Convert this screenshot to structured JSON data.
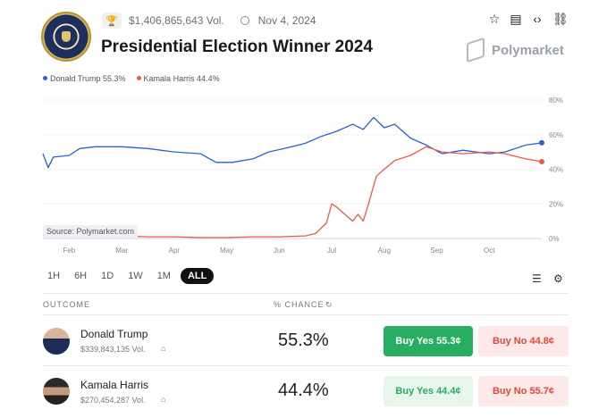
{
  "header": {
    "volume": "$1,406,865,643 Vol.",
    "date": "Nov 4, 2024",
    "title": "Presidential Election Winner 2024",
    "brand": "Polymarket"
  },
  "legend": [
    {
      "label": "Donald Trump 55.3%",
      "color": "#2d5fd3"
    },
    {
      "label": "Kamala Harris 44.4%",
      "color": "#e85b4a"
    }
  ],
  "source_label": "Source: Polymarket.com",
  "time_ranges": [
    "1H",
    "6H",
    "1D",
    "1W",
    "1M",
    "ALL"
  ],
  "active_range": "ALL",
  "table": {
    "outcome_header": "OUTCOME",
    "chance_header": "% CHANCE",
    "rows": [
      {
        "name": "Donald Trump",
        "volume": "$339,843,135 Vol.",
        "chance": "55.3%",
        "buy_yes": "Buy Yes 55.3¢",
        "buy_no": "Buy No 44.8¢"
      },
      {
        "name": "Kamala Harris",
        "volume": "$270,454,287 Vol.",
        "chance": "44.4%",
        "buy_yes": "Buy Yes 44.4¢",
        "buy_no": "Buy No 55.7¢"
      }
    ]
  },
  "chart_data": {
    "type": "line",
    "x_ticks": [
      "Feb",
      "Mar",
      "Apr",
      "May",
      "Jun",
      "Jul",
      "Aug",
      "Sep",
      "Oct"
    ],
    "y_ticks": [
      "0%",
      "20%",
      "40%",
      "60%",
      "80%"
    ],
    "ylim": [
      0,
      80
    ],
    "xlim": [
      0,
      9.5
    ],
    "grid": true,
    "series": [
      {
        "name": "Donald Trump",
        "color": "#2d5fd3",
        "points": [
          [
            0,
            49
          ],
          [
            0.1,
            41
          ],
          [
            0.2,
            47
          ],
          [
            0.5,
            48
          ],
          [
            0.7,
            52
          ],
          [
            1.0,
            53
          ],
          [
            1.5,
            53
          ],
          [
            2.0,
            52
          ],
          [
            2.5,
            50
          ],
          [
            3.0,
            49
          ],
          [
            3.3,
            44
          ],
          [
            3.6,
            44
          ],
          [
            4.0,
            46
          ],
          [
            4.3,
            50
          ],
          [
            4.6,
            52
          ],
          [
            5.0,
            55
          ],
          [
            5.3,
            59
          ],
          [
            5.6,
            62
          ],
          [
            5.9,
            66
          ],
          [
            6.1,
            63
          ],
          [
            6.3,
            70
          ],
          [
            6.5,
            64
          ],
          [
            6.7,
            66
          ],
          [
            7.0,
            58
          ],
          [
            7.3,
            54
          ],
          [
            7.6,
            49
          ],
          [
            8.0,
            51
          ],
          [
            8.5,
            49
          ],
          [
            8.8,
            50
          ],
          [
            9.2,
            54
          ],
          [
            9.5,
            55.3
          ]
        ]
      },
      {
        "name": "Kamala Harris",
        "color": "#e85b4a",
        "points": [
          [
            0,
            2
          ],
          [
            0.5,
            2
          ],
          [
            1.0,
            1
          ],
          [
            1.5,
            1.5
          ],
          [
            2.0,
            1
          ],
          [
            2.5,
            1
          ],
          [
            3.0,
            0.5
          ],
          [
            3.5,
            0.5
          ],
          [
            4.0,
            1
          ],
          [
            4.5,
            1
          ],
          [
            5.0,
            1.5
          ],
          [
            5.2,
            3
          ],
          [
            5.4,
            9
          ],
          [
            5.5,
            20
          ],
          [
            5.6,
            18
          ],
          [
            5.75,
            14
          ],
          [
            5.9,
            10
          ],
          [
            6.0,
            14
          ],
          [
            6.1,
            10
          ],
          [
            6.2,
            20
          ],
          [
            6.35,
            36
          ],
          [
            6.5,
            40
          ],
          [
            6.7,
            45
          ],
          [
            7.0,
            48
          ],
          [
            7.3,
            53
          ],
          [
            7.6,
            50
          ],
          [
            8.0,
            49
          ],
          [
            8.5,
            50
          ],
          [
            8.8,
            49
          ],
          [
            9.2,
            46
          ],
          [
            9.5,
            44.4
          ]
        ]
      }
    ]
  }
}
